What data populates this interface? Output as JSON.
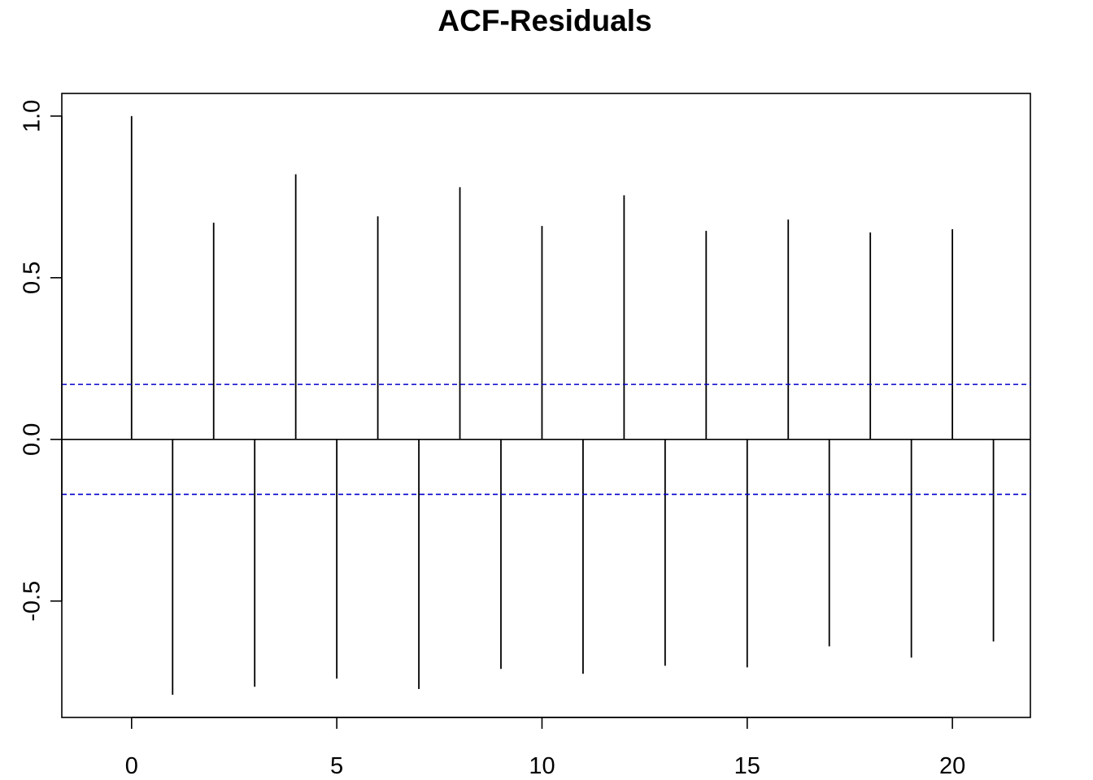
{
  "chart_data": {
    "type": "bar",
    "title": "ACF-Residuals",
    "xlabel": "",
    "ylabel": "",
    "x": [
      0,
      1,
      2,
      3,
      4,
      5,
      6,
      7,
      8,
      9,
      10,
      11,
      12,
      13,
      14,
      15,
      16,
      17,
      18,
      19,
      20,
      21
    ],
    "values": [
      1.0,
      -0.79,
      0.67,
      -0.765,
      0.82,
      -0.74,
      0.69,
      -0.772,
      0.78,
      -0.71,
      0.66,
      -0.725,
      0.755,
      -0.7,
      0.645,
      -0.705,
      0.68,
      -0.64,
      0.64,
      -0.675,
      0.65,
      -0.625
    ],
    "ci": 0.17,
    "xlim": [
      -1.7,
      21.9
    ],
    "ylim": [
      -0.86,
      1.07
    ],
    "xticks": [
      0,
      5,
      10,
      15,
      20
    ],
    "xtick_labels": [
      "0",
      "5",
      "10",
      "15",
      "20"
    ],
    "yticks": [
      -0.5,
      0.0,
      0.5,
      1.0
    ],
    "ytick_labels": [
      "-0.5",
      "0.0",
      "0.5",
      "1.0"
    ],
    "grid": false,
    "colors": {
      "spike": "#000000",
      "ci": "#0000cc"
    }
  }
}
